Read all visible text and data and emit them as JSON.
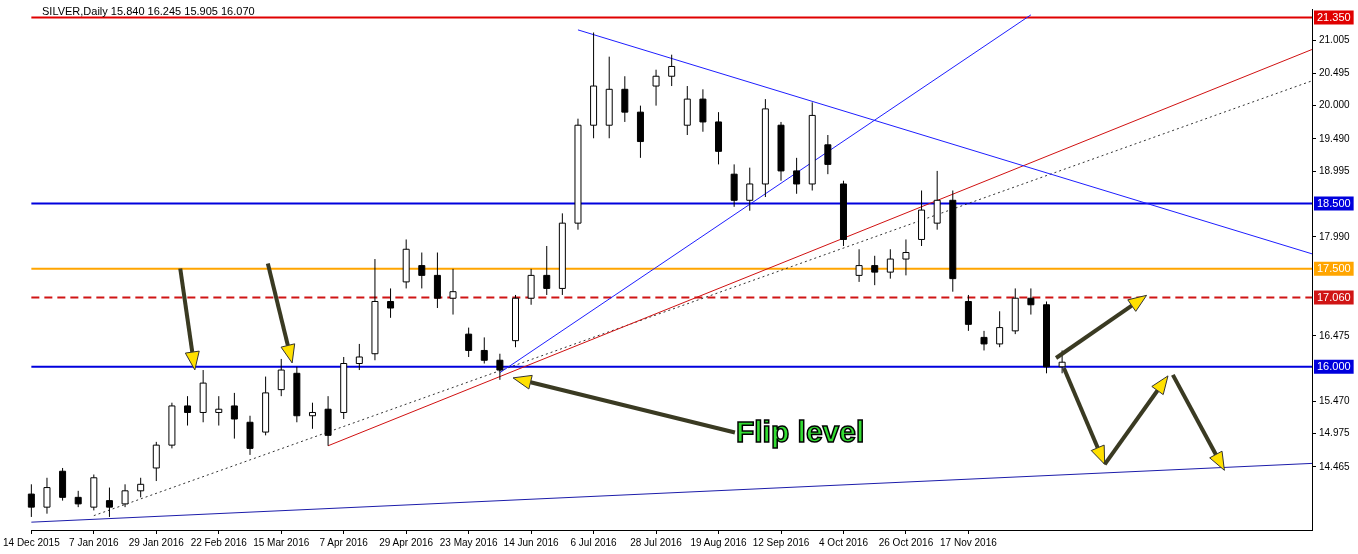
{
  "chart_data": {
    "type": "candlestick",
    "title": "SILVER,Daily  15.840 16.245 15.905 16.070",
    "categories": [
      "14 Dec 2015",
      null,
      null,
      null,
      "7 Jan 2016",
      null,
      null,
      null,
      "29 Jan 2016",
      null,
      null,
      null,
      "22 Feb 2016",
      null,
      null,
      null,
      "15 Mar 2016",
      null,
      null,
      null,
      "7 Apr 2016",
      null,
      null,
      null,
      "29 Apr 2016",
      null,
      null,
      null,
      "23 May 2016",
      null,
      null,
      null,
      "14 Jun 2016",
      null,
      null,
      null,
      "6 Jul 2016",
      null,
      null,
      null,
      "28 Jul 2016",
      null,
      null,
      null,
      "19 Aug 2016",
      null,
      null,
      null,
      "12 Sep 2016",
      null,
      null,
      null,
      "4 Oct 2016",
      null,
      null,
      null,
      "26 Oct 2016",
      null,
      null,
      null,
      "17 Nov 2016",
      null,
      null,
      null,
      null,
      null,
      null,
      null,
      null,
      null,
      null,
      null,
      null,
      null,
      null,
      null,
      null,
      null,
      null,
      null,
      null,
      null,
      null
    ],
    "ohlc": [
      [
        14.05,
        14.2,
        13.7,
        13.85
      ],
      [
        13.85,
        14.3,
        13.75,
        14.15
      ],
      [
        14.4,
        14.45,
        13.95,
        14.0
      ],
      [
        14.0,
        14.1,
        13.85,
        13.9
      ],
      [
        13.85,
        14.35,
        13.8,
        14.3
      ],
      [
        13.95,
        14.15,
        13.7,
        13.85
      ],
      [
        13.9,
        14.2,
        13.85,
        14.1
      ],
      [
        14.1,
        14.3,
        14.0,
        14.2
      ],
      [
        14.45,
        14.85,
        14.25,
        14.8
      ],
      [
        14.8,
        15.45,
        14.75,
        15.4
      ],
      [
        15.4,
        15.55,
        15.1,
        15.3
      ],
      [
        15.3,
        15.95,
        15.15,
        15.75
      ],
      [
        15.3,
        15.55,
        15.1,
        15.35
      ],
      [
        15.4,
        15.6,
        14.9,
        15.2
      ],
      [
        15.15,
        15.25,
        14.65,
        14.75
      ],
      [
        15.0,
        15.85,
        14.95,
        15.6
      ],
      [
        15.65,
        16.12,
        15.55,
        15.95
      ],
      [
        15.9,
        16.0,
        15.15,
        15.25
      ],
      [
        15.25,
        15.45,
        15.05,
        15.3
      ],
      [
        15.35,
        15.55,
        14.79,
        14.95
      ],
      [
        15.3,
        16.15,
        15.2,
        16.05
      ],
      [
        16.05,
        16.35,
        15.95,
        16.15
      ],
      [
        16.2,
        17.65,
        16.1,
        17.0
      ],
      [
        17.0,
        17.2,
        16.75,
        16.9
      ],
      [
        17.3,
        17.95,
        17.2,
        17.8
      ],
      [
        17.55,
        17.75,
        17.2,
        17.4
      ],
      [
        17.4,
        17.75,
        16.9,
        17.05
      ],
      [
        17.05,
        17.5,
        16.8,
        17.15
      ],
      [
        16.5,
        16.6,
        16.15,
        16.25
      ],
      [
        16.25,
        16.45,
        16.05,
        16.1
      ],
      [
        16.1,
        16.2,
        15.8,
        15.95
      ],
      [
        16.4,
        17.1,
        16.3,
        17.05
      ],
      [
        17.05,
        17.5,
        16.95,
        17.4
      ],
      [
        17.4,
        17.85,
        17.1,
        17.2
      ],
      [
        17.2,
        18.35,
        17.1,
        18.2
      ],
      [
        18.2,
        19.8,
        18.1,
        19.7
      ],
      [
        19.7,
        21.12,
        19.5,
        20.3
      ],
      [
        19.7,
        20.75,
        19.5,
        20.25
      ],
      [
        20.25,
        20.45,
        19.75,
        19.9
      ],
      [
        19.9,
        20.0,
        19.2,
        19.45
      ],
      [
        20.3,
        20.55,
        20.0,
        20.45
      ],
      [
        20.45,
        20.78,
        20.3,
        20.6
      ],
      [
        19.7,
        20.3,
        19.55,
        20.1
      ],
      [
        20.1,
        20.25,
        19.6,
        19.75
      ],
      [
        19.75,
        19.9,
        19.1,
        19.3
      ],
      [
        18.95,
        19.1,
        18.45,
        18.55
      ],
      [
        18.55,
        19.05,
        18.39,
        18.8
      ],
      [
        18.8,
        20.1,
        18.6,
        19.95
      ],
      [
        19.7,
        19.75,
        18.85,
        19.0
      ],
      [
        19.0,
        19.2,
        18.65,
        18.8
      ],
      [
        18.8,
        20.05,
        18.7,
        19.85
      ],
      [
        19.4,
        19.55,
        18.95,
        19.1
      ],
      [
        18.8,
        18.85,
        17.85,
        17.95
      ],
      [
        17.4,
        17.8,
        17.3,
        17.55
      ],
      [
        17.55,
        17.7,
        17.25,
        17.45
      ],
      [
        17.45,
        17.8,
        17.35,
        17.65
      ],
      [
        17.65,
        17.95,
        17.4,
        17.75
      ],
      [
        17.95,
        18.7,
        17.85,
        18.4
      ],
      [
        18.2,
        19.0,
        18.1,
        18.55
      ],
      [
        18.55,
        18.7,
        17.15,
        17.35
      ],
      [
        17.0,
        17.1,
        16.55,
        16.65
      ],
      [
        16.45,
        16.55,
        16.25,
        16.35
      ],
      [
        16.35,
        16.85,
        16.3,
        16.6
      ],
      [
        16.55,
        17.2,
        16.5,
        17.05
      ],
      [
        17.05,
        17.2,
        16.8,
        16.95
      ],
      [
        16.95,
        17.0,
        15.9,
        16.0
      ],
      [
        16.0,
        16.25,
        15.9,
        16.07
      ],
      null,
      null,
      null,
      null,
      null,
      null,
      null,
      null,
      null,
      null,
      null,
      null,
      null,
      null,
      null,
      null
    ],
    "ylim": [
      13.5,
      21.48
    ],
    "yticks": [
      {
        "value": 21.005,
        "label": "21.005"
      },
      {
        "value": 20.495,
        "label": "20.495"
      },
      {
        "value": 20.0,
        "label": "20.000"
      },
      {
        "value": 19.49,
        "label": "19.490"
      },
      {
        "value": 18.995,
        "label": "18.995"
      },
      {
        "value": 17.99,
        "label": "17.990"
      },
      {
        "value": 16.475,
        "label": "16.475"
      },
      {
        "value": 15.47,
        "label": "15.470"
      },
      {
        "value": 14.975,
        "label": "14.975"
      },
      {
        "value": 14.465,
        "label": "14.465"
      }
    ],
    "ref_lines": [
      {
        "axis": "y",
        "value": 21.35,
        "label": "21.350",
        "color": "#e00000"
      },
      {
        "axis": "y",
        "value": 18.5,
        "label": "18.500",
        "color": "#0000dd"
      },
      {
        "axis": "y",
        "value": 17.5,
        "label": "17.500",
        "color": "#ffa500"
      },
      {
        "axis": "y",
        "value": 17.06,
        "label": "17.060",
        "color": "#d01515",
        "line_style": "dashed"
      },
      {
        "axis": "y",
        "value": 16.0,
        "label": "16.000",
        "color": "#0000dd"
      }
    ],
    "series": [
      {
        "type": "line",
        "color": "#1e1eff",
        "values": [
          null,
          null,
          null,
          null,
          null,
          null,
          null,
          null,
          null,
          null,
          null,
          null,
          null,
          null,
          null,
          null,
          null,
          null,
          null,
          null,
          null,
          null,
          null,
          null,
          null,
          null,
          null,
          null,
          null,
          null,
          null,
          null,
          null,
          null,
          null,
          21.16,
          null,
          null,
          null,
          null,
          null,
          null,
          null,
          null,
          null,
          null,
          null,
          null,
          null,
          null,
          null,
          null,
          null,
          null,
          null,
          null,
          null,
          null,
          null,
          null,
          null,
          null,
          null,
          null,
          null,
          null,
          null,
          null,
          null,
          null,
          null,
          null,
          null,
          null,
          null,
          null,
          null,
          null,
          null,
          null,
          null,
          null,
          17.73
        ]
      },
      {
        "type": "line",
        "color": "#1e1eff",
        "values": [
          null,
          null,
          null,
          null,
          null,
          null,
          null,
          null,
          null,
          null,
          null,
          null,
          null,
          null,
          null,
          null,
          null,
          null,
          null,
          null,
          null,
          null,
          null,
          null,
          null,
          null,
          null,
          null,
          null,
          null,
          15.91,
          null,
          null,
          null,
          null,
          null,
          null,
          null,
          null,
          null,
          null,
          null,
          null,
          null,
          null,
          null,
          null,
          null,
          null,
          null,
          null,
          null,
          null,
          null,
          null,
          null,
          null,
          null,
          null,
          null,
          null,
          null,
          null,
          null,
          21.39,
          null,
          null,
          null,
          null,
          null,
          null,
          null,
          null,
          null,
          null,
          null,
          null,
          null,
          null,
          null,
          null,
          null,
          null
        ]
      },
      {
        "type": "line",
        "color": "#d01010",
        "values": [
          null,
          null,
          null,
          null,
          null,
          null,
          null,
          null,
          null,
          null,
          null,
          null,
          null,
          null,
          null,
          null,
          null,
          null,
          null,
          14.79,
          null,
          null,
          null,
          null,
          null,
          null,
          null,
          null,
          null,
          null,
          null,
          null,
          null,
          null,
          null,
          null,
          null,
          null,
          null,
          null,
          null,
          null,
          null,
          null,
          null,
          null,
          null,
          null,
          null,
          null,
          null,
          null,
          null,
          null,
          null,
          null,
          null,
          null,
          null,
          null,
          null,
          null,
          null,
          null,
          null,
          null,
          null,
          null,
          null,
          null,
          null,
          null,
          null,
          null,
          null,
          null,
          null,
          null,
          null,
          null,
          null,
          null,
          20.86
        ]
      },
      {
        "type": "line",
        "color": "#333333",
        "line_style": "dotted",
        "values": [
          null,
          null,
          null,
          null,
          13.72,
          null,
          null,
          null,
          null,
          null,
          null,
          null,
          null,
          null,
          null,
          null,
          null,
          null,
          null,
          null,
          null,
          null,
          null,
          null,
          null,
          null,
          null,
          null,
          null,
          null,
          null,
          null,
          null,
          null,
          null,
          null,
          null,
          null,
          null,
          null,
          null,
          null,
          null,
          null,
          null,
          null,
          null,
          null,
          null,
          null,
          null,
          null,
          null,
          null,
          null,
          null,
          null,
          null,
          null,
          null,
          null,
          null,
          null,
          null,
          null,
          null,
          null,
          null,
          null,
          null,
          null,
          null,
          null,
          null,
          null,
          null,
          null,
          null,
          null,
          null,
          null,
          null,
          20.38
        ]
      },
      {
        "type": "line",
        "color": "#1c1caa",
        "values": [
          13.62,
          null,
          null,
          null,
          null,
          null,
          null,
          null,
          null,
          null,
          null,
          null,
          null,
          null,
          null,
          null,
          null,
          null,
          null,
          null,
          null,
          null,
          null,
          null,
          null,
          null,
          null,
          null,
          null,
          null,
          null,
          null,
          null,
          null,
          null,
          null,
          null,
          null,
          null,
          null,
          null,
          null,
          null,
          null,
          null,
          null,
          null,
          null,
          null,
          null,
          null,
          null,
          null,
          null,
          null,
          null,
          null,
          null,
          null,
          null,
          null,
          null,
          null,
          null,
          null,
          null,
          null,
          null,
          null,
          null,
          null,
          null,
          null,
          null,
          null,
          null,
          null,
          null,
          null,
          null,
          null,
          null,
          14.52
        ]
      }
    ],
    "annotations": [
      "Flip level"
    ],
    "marker": "none",
    "grid": false,
    "legend": false
  }
}
